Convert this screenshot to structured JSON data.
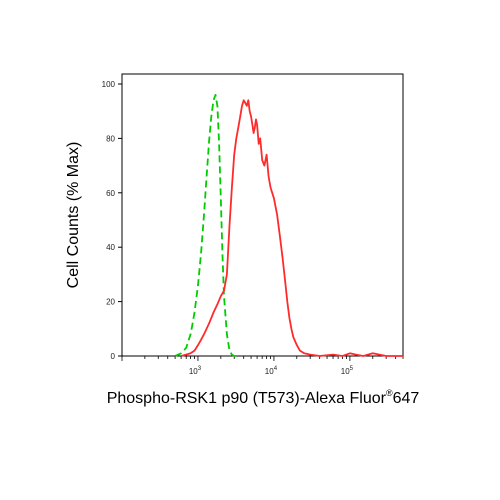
{
  "chart_data": {
    "type": "line",
    "xlabel": "Phospho-RSK1 p90 (T573)-Alexa Fluor",
    "xlabel_superscript": "®",
    "xlabel_suffix": "647",
    "ylabel": "Cell Counts (% Max)",
    "x_scale": "log",
    "xlim": [
      100,
      500000
    ],
    "ylim": [
      0,
      100
    ],
    "y_ticks": [
      0,
      20,
      40,
      60,
      80,
      100
    ],
    "x_ticks": [
      {
        "value": 1000,
        "base": "10",
        "exp": "3"
      },
      {
        "value": 10000,
        "base": "10",
        "exp": "4"
      },
      {
        "value": 100000,
        "base": "10",
        "exp": "5"
      }
    ],
    "grid": false,
    "series": [
      {
        "color": "#00cc00",
        "dash": "dashed",
        "x": [
          500,
          600,
          700,
          800,
          850,
          900,
          1000,
          1100,
          1200,
          1300,
          1400,
          1500,
          1600,
          1700,
          1800,
          1900,
          2000,
          2100,
          2200,
          2400,
          2600,
          2800,
          3000,
          3300
        ],
        "y": [
          0,
          1,
          3,
          8,
          12,
          16,
          26,
          38,
          52,
          66,
          79,
          88,
          94,
          96,
          92,
          78,
          58,
          38,
          22,
          8,
          2,
          0.5,
          0,
          0
        ]
      },
      {
        "color": "#ff2a2a",
        "dash": "solid",
        "x": [
          600,
          700,
          800,
          900,
          1000,
          1100,
          1200,
          1400,
          1600,
          1800,
          2000,
          2200,
          2400,
          2600,
          2800,
          3000,
          3200,
          3400,
          3600,
          3800,
          4000,
          4200,
          4400,
          4600,
          4800,
          5000,
          5200,
          5400,
          5600,
          5800,
          6000,
          6300,
          6600,
          7000,
          7500,
          8000,
          8500,
          9000,
          9500,
          10000,
          11000,
          12000,
          13000,
          14000,
          15000,
          16000,
          17000,
          18000,
          20000,
          22000,
          25000,
          30000,
          40000,
          60000,
          80000,
          100000,
          120000,
          150000,
          200000,
          300000,
          500000
        ],
        "y": [
          0,
          0.5,
          1,
          2,
          4,
          6,
          8,
          12,
          16,
          19,
          22,
          24,
          30,
          48,
          62,
          74,
          80,
          84,
          88,
          92,
          94,
          93,
          92,
          94,
          90,
          88,
          85,
          82,
          84,
          87,
          85,
          78,
          80,
          72,
          70,
          74,
          66,
          62,
          60,
          58,
          52,
          44,
          36,
          28,
          20,
          14,
          10,
          7,
          4,
          2,
          1,
          0.5,
          0,
          0.5,
          0,
          1,
          0.5,
          0,
          1,
          0,
          0
        ]
      }
    ]
  }
}
